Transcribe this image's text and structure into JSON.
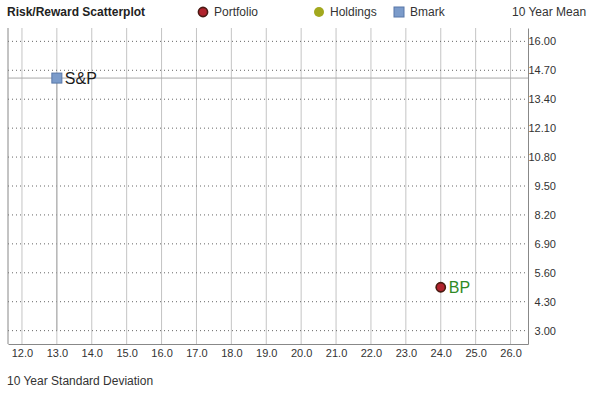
{
  "chart_data": {
    "type": "scatter",
    "title": "Risk/Reward Scatterplot",
    "x_label": "10 Year Standard Deviation",
    "y_label": "10 Year Mean",
    "legend": "top",
    "grid": true,
    "xlim": [
      11.6,
      26.5
    ],
    "xticks": [
      {
        "value": 12,
        "label": "12.0"
      },
      {
        "value": 13,
        "label": "13.0"
      },
      {
        "value": 14,
        "label": "14.0"
      },
      {
        "value": 15,
        "label": "15.0"
      },
      {
        "value": 16,
        "label": "16.0"
      },
      {
        "value": 17,
        "label": "17.0"
      },
      {
        "value": 18,
        "label": "18.0"
      },
      {
        "value": 19,
        "label": "19.0"
      },
      {
        "value": 20,
        "label": "20.0"
      },
      {
        "value": 21,
        "label": "21.0"
      },
      {
        "value": 22,
        "label": "22.0"
      },
      {
        "value": 23,
        "label": "23.0"
      },
      {
        "value": 24,
        "label": "24.0"
      },
      {
        "value": 25,
        "label": "25.0"
      },
      {
        "value": 26,
        "label": "26.0"
      }
    ],
    "ylim": [
      2.4,
      16.6
    ],
    "yticks": [
      {
        "value": 3,
        "label": "3.00"
      },
      {
        "value": 4.3,
        "label": "4.30"
      },
      {
        "value": 5.6,
        "label": "5.60"
      },
      {
        "value": 6.9,
        "label": "6.90"
      },
      {
        "value": 8.2,
        "label": "8.20"
      },
      {
        "value": 9.5,
        "label": "9.50"
      },
      {
        "value": 10.8,
        "label": "10.80"
      },
      {
        "value": 12.1,
        "label": "12.10"
      },
      {
        "value": 13.4,
        "label": "13.40"
      },
      {
        "value": 14.7,
        "label": "14.70"
      },
      {
        "value": 16,
        "label": "16.00"
      }
    ],
    "series": [
      {
        "name": "Portfolio",
        "color": "#b1232d",
        "marker": "circle",
        "x": [
          24.0
        ],
        "values": [
          4.95
        ]
      },
      {
        "name": "Holdings",
        "color": "#a2a81e",
        "marker": "circle",
        "x": [
          24.0
        ],
        "values": [
          4.95
        ],
        "labels": [
          "BP"
        ]
      },
      {
        "name": "Bmark",
        "color": "#7b9bca",
        "marker": "square",
        "x": [
          13.0
        ],
        "values": [
          14.35
        ],
        "labels": [
          "S&P"
        ]
      }
    ]
  }
}
